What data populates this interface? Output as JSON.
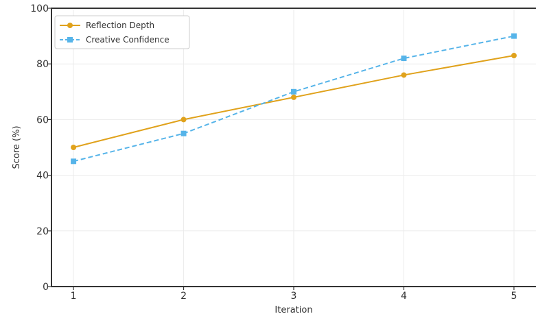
{
  "chart_data": {
    "type": "line",
    "title": "",
    "xlabel": "Iteration",
    "ylabel": "Score (%)",
    "x": [
      1,
      2,
      3,
      4,
      5
    ],
    "xlim": [
      0.8,
      5.2
    ],
    "ylim": [
      0,
      100
    ],
    "yticks": [
      0,
      20,
      40,
      60,
      80,
      100
    ],
    "grid": true,
    "legend_position": "top-left",
    "series": [
      {
        "name": "Reflection Depth",
        "values": [
          50,
          60,
          68,
          76,
          83
        ],
        "color": "#e0a21c",
        "line_style": "solid",
        "marker": "circle"
      },
      {
        "name": "Creative Confidence",
        "values": [
          45,
          55,
          70,
          82,
          90
        ],
        "color": "#56b4e9",
        "line_style": "dashed",
        "marker": "square"
      }
    ]
  }
}
